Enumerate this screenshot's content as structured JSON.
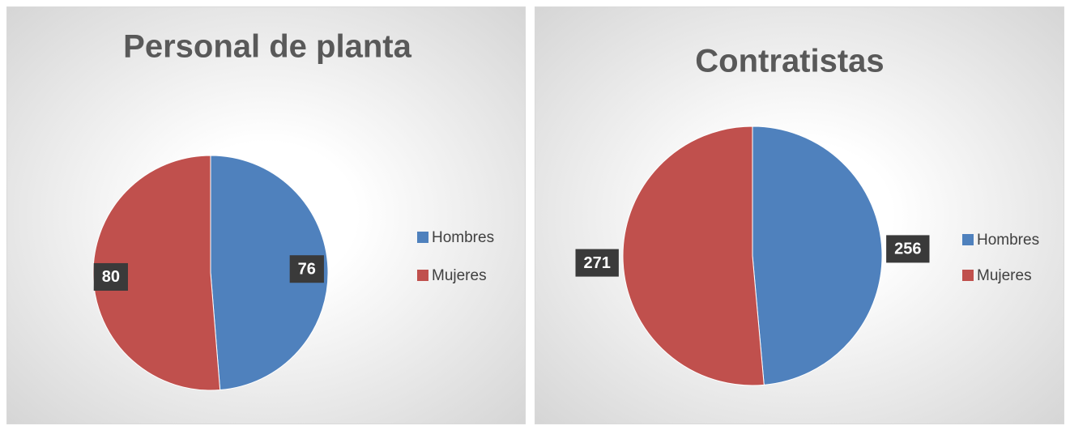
{
  "chart_data": [
    {
      "type": "pie",
      "title": "Personal de planta",
      "categories": [
        "Hombres",
        "Mujeres"
      ],
      "values": [
        76,
        80
      ],
      "colors": [
        "#4f81bd",
        "#c0504d"
      ],
      "legend": "right"
    },
    {
      "type": "pie",
      "title": "Contratistas",
      "categories": [
        "Hombres",
        "Mujeres"
      ],
      "values": [
        256,
        271
      ],
      "colors": [
        "#4f81bd",
        "#c0504d"
      ],
      "legend": "right"
    }
  ]
}
